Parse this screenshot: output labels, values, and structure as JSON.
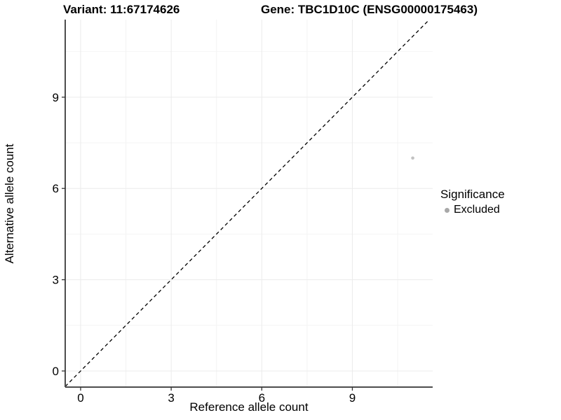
{
  "titles": {
    "variant": "Variant: 11:67174626",
    "gene": "Gene: TBC1D10C (ENSG00000175463)"
  },
  "chart_data": {
    "type": "scatter",
    "title_left": "Variant: 11:67174626",
    "title_right": "Gene: TBC1D10C (ENSG00000175463)",
    "xlabel": "Reference allele count",
    "ylabel": "Alternative allele count",
    "xlim": [
      -0.51,
      11.66
    ],
    "ylim": [
      -0.53,
      11.55
    ],
    "x_ticks": [
      0,
      3,
      6,
      9
    ],
    "y_ticks": [
      0,
      3,
      6,
      9
    ],
    "x_minor_ticks": [
      1.5,
      4.5,
      7.5,
      10.5
    ],
    "y_minor_ticks": [
      1.5,
      4.5,
      7.5,
      10.5
    ],
    "grid": true,
    "series": [
      {
        "name": "Excluded",
        "color": "#c2c2c2",
        "points": [
          {
            "x": 11,
            "y": 7
          }
        ]
      }
    ],
    "reference_line": {
      "slope": 1,
      "intercept": 0,
      "style": "dashed",
      "color": "#000000"
    },
    "legend": {
      "title": "Significance",
      "position": "right",
      "entries": [
        {
          "label": "Excluded",
          "color": "#a8a8a8",
          "marker": "circle"
        }
      ]
    }
  },
  "colors": {
    "background": "#ffffff",
    "grid_major": "#ebebeb",
    "grid_minor": "#f4f4f4",
    "axis_line": "#4d4d4d",
    "tick_mark": "#333333",
    "tick_label": "#000000"
  }
}
